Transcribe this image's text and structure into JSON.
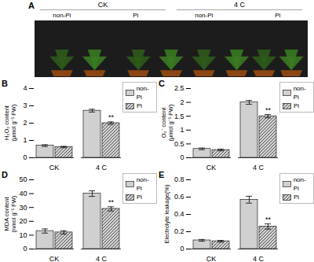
{
  "chart_data": [
    {
      "type": "image",
      "title": "A",
      "color": "#1c1c1c",
      "annotations": [
        "CK",
        "4 C",
        "non-Pi",
        "Pi",
        "non-Pi",
        "Pi"
      ]
    },
    {
      "type": "bar",
      "title": "B",
      "ylabel": "H₂O₂ content\n(μmol g⁻¹ FW)",
      "categories": [
        "CK",
        "4 C"
      ],
      "series": [
        {
          "name": "non-Pi",
          "color": "#d0d0d0",
          "values": [
            0.7,
            2.72
          ],
          "errors": [
            0.05,
            0.08
          ]
        },
        {
          "name": "Pi",
          "color": "#d0d0d0",
          "values": [
            0.62,
            2.0
          ],
          "errors": [
            0.04,
            0.07
          ]
        }
      ],
      "annotations": [
        {
          "text": "**",
          "x": "4 C",
          "series": "Pi"
        }
      ],
      "ylim": [
        0,
        4
      ],
      "yticks": [
        0,
        1,
        2,
        3,
        4
      ],
      "legend": "right"
    },
    {
      "type": "bar",
      "title": "C",
      "ylabel": "O₂⁻ content\n(μmol g⁻¹ FW)",
      "categories": [
        "CK",
        "4 C"
      ],
      "series": [
        {
          "name": "non-Pi",
          "color": "#d0d0d0",
          "values": [
            0.32,
            2.0
          ],
          "errors": [
            0.03,
            0.07
          ]
        },
        {
          "name": "Pi",
          "color": "#d0d0d0",
          "values": [
            0.28,
            1.5
          ],
          "errors": [
            0.03,
            0.06
          ]
        }
      ],
      "annotations": [
        {
          "text": "**",
          "x": "4 C",
          "series": "Pi"
        }
      ],
      "ylim": [
        0.0,
        2.5
      ],
      "yticks": [
        0,
        0.5,
        1,
        1.5,
        2,
        2.5
      ],
      "legend": "right"
    },
    {
      "type": "bar",
      "title": "D",
      "ylabel": "MDA content\n(nmol g⁻¹ FW)",
      "categories": [
        "CK",
        "4 C"
      ],
      "series": [
        {
          "name": "non-Pi",
          "color": "#d0d0d0",
          "values": [
            13,
            40
          ],
          "errors": [
            1.5,
            2.0
          ]
        },
        {
          "name": "Pi",
          "color": "#d0d0d0",
          "values": [
            12,
            29
          ],
          "errors": [
            1.2,
            1.5
          ]
        }
      ],
      "annotations": [
        {
          "text": "**",
          "x": "4 C",
          "series": "Pi"
        }
      ],
      "ylim": [
        0,
        50
      ],
      "yticks": [
        0,
        10,
        20,
        30,
        40,
        50
      ],
      "legend": "right"
    },
    {
      "type": "bar",
      "title": "E",
      "ylabel": "Electrolyte leakage(%)",
      "categories": [
        "CK",
        "4 C"
      ],
      "series": [
        {
          "name": "non-Pi",
          "color": "#d0d0d0",
          "values": [
            0.1,
            0.57
          ],
          "errors": [
            0.01,
            0.04
          ]
        },
        {
          "name": "Pi",
          "color": "#d0d0d0",
          "values": [
            0.09,
            0.26
          ],
          "errors": [
            0.01,
            0.03
          ]
        }
      ],
      "annotations": [
        {
          "text": "**",
          "x": "4 C",
          "series": "Pi"
        }
      ],
      "ylim": [
        0.0,
        0.8
      ],
      "yticks": [
        0,
        0.2,
        0.4,
        0.6,
        0.8
      ],
      "legend": "right"
    }
  ]
}
